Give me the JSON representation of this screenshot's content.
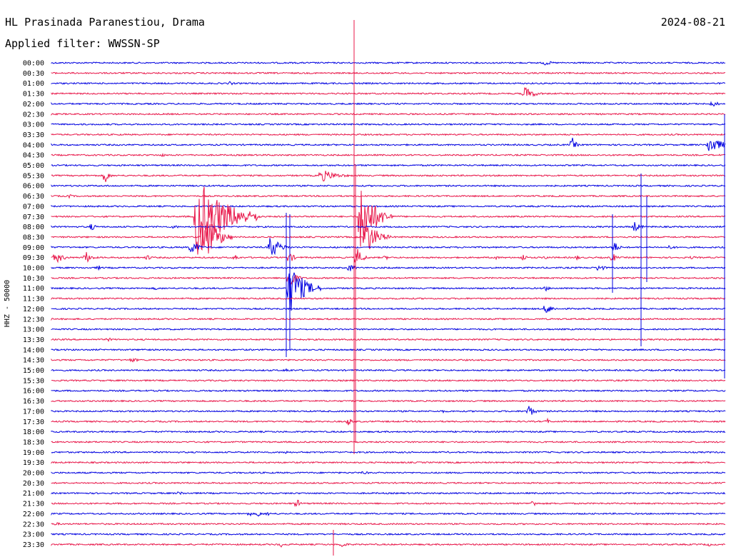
{
  "header": {
    "station": "HL Prasinada Paranestiou, Drama",
    "date": "2024-08-21",
    "filter": "Applied filter: WWSSN-SP",
    "ylabel": "HHZ - 50000"
  },
  "chart_data": {
    "type": "line",
    "title": "HL Prasinada Paranestiou, Drama",
    "ylabel": "HHZ - 50000",
    "rows": [
      "00:00",
      "00:30",
      "01:00",
      "01:30",
      "02:00",
      "02:30",
      "03:00",
      "03:30",
      "04:00",
      "04:30",
      "05:00",
      "05:30",
      "06:00",
      "06:30",
      "07:00",
      "07:30",
      "08:00",
      "08:30",
      "09:00",
      "09:30",
      "10:00",
      "10:30",
      "11:00",
      "11:30",
      "12:00",
      "12:30",
      "13:00",
      "13:30",
      "14:00",
      "14:30",
      "15:00",
      "15:30",
      "16:00",
      "16:30",
      "17:00",
      "17:30",
      "18:00",
      "18:30",
      "19:00",
      "19:30",
      "20:00",
      "20:30",
      "21:00",
      "21:30",
      "22:00",
      "22:30",
      "23:00",
      "23:30"
    ],
    "colors": [
      "#0000e0",
      "#e8174a"
    ],
    "grid": false
  }
}
